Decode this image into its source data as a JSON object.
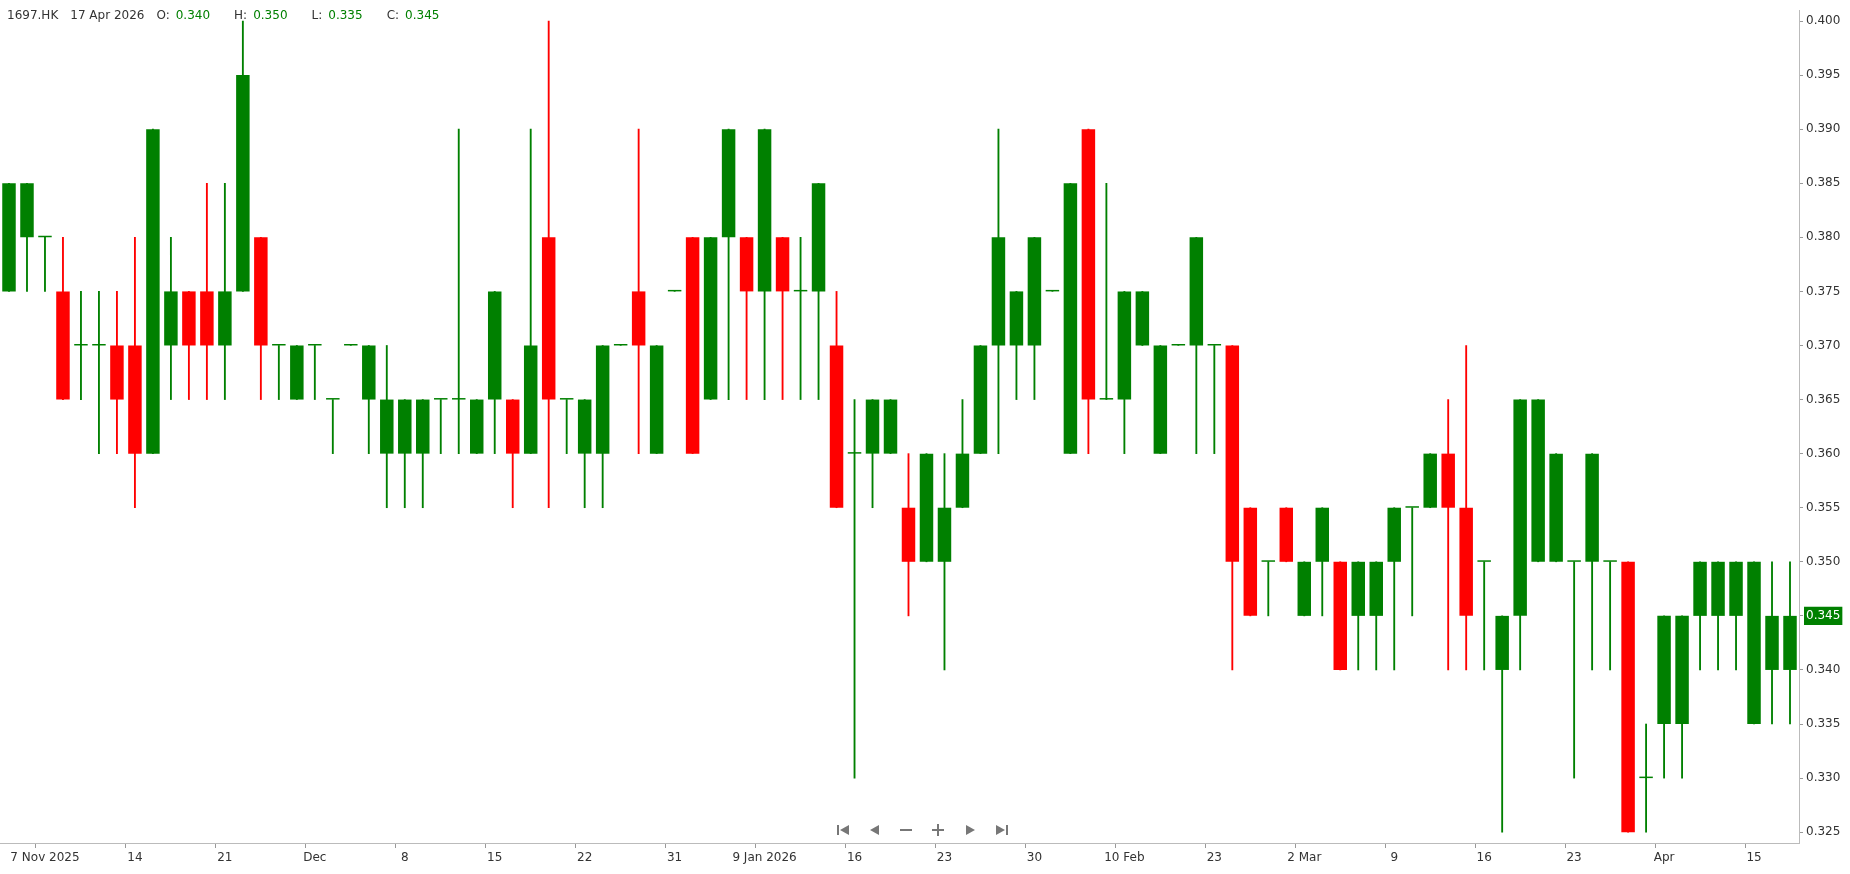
{
  "chart_data": {
    "type": "candlestick",
    "title": "1697.HK",
    "subtitle": "17 Apr 2026",
    "annotations": [
      "O: 0.340",
      "H: 0.350",
      "L: 0.335",
      "C: 0.345"
    ],
    "categories": [
      null,
      null,
      "7 Nov 2025",
      null,
      null,
      null,
      null,
      "14",
      null,
      null,
      null,
      null,
      "21",
      null,
      null,
      null,
      null,
      "Dec",
      null,
      null,
      null,
      null,
      "8",
      null,
      null,
      null,
      null,
      "15",
      null,
      null,
      null,
      null,
      "22",
      null,
      null,
      null,
      null,
      "31",
      null,
      null,
      null,
      null,
      "9 Jan 2026",
      null,
      null,
      null,
      null,
      "16",
      null,
      null,
      null,
      null,
      "23",
      null,
      null,
      null,
      null,
      "30",
      null,
      null,
      null,
      null,
      "10 Feb",
      null,
      null,
      null,
      null,
      "23",
      null,
      null,
      null,
      null,
      "2 Mar",
      null,
      null,
      null,
      null,
      "9",
      null,
      null,
      null,
      null,
      "16",
      null,
      null,
      null,
      null,
      "23",
      null,
      null,
      null,
      null,
      "Apr",
      null,
      null,
      null,
      null,
      "15",
      null,
      null
    ],
    "ohlc": [
      [
        0.375,
        0.385,
        0.375,
        0.385
      ],
      [
        0.38,
        0.385,
        0.375,
        0.385
      ],
      [
        0.38,
        0.38,
        0.375,
        0.38
      ],
      [
        0.375,
        0.38,
        0.365,
        0.365
      ],
      [
        0.37,
        0.375,
        0.365,
        0.37
      ],
      [
        0.37,
        0.375,
        0.36,
        0.37
      ],
      [
        0.37,
        0.375,
        0.36,
        0.365
      ],
      [
        0.37,
        0.38,
        0.355,
        0.36
      ],
      [
        0.36,
        0.39,
        0.36,
        0.39
      ],
      [
        0.37,
        0.38,
        0.365,
        0.375
      ],
      [
        0.375,
        0.375,
        0.365,
        0.37
      ],
      [
        0.375,
        0.385,
        0.365,
        0.37
      ],
      [
        0.37,
        0.385,
        0.365,
        0.375
      ],
      [
        0.375,
        0.4,
        0.375,
        0.395
      ],
      [
        0.38,
        0.38,
        0.365,
        0.37
      ],
      [
        0.37,
        0.37,
        0.365,
        0.37
      ],
      [
        0.365,
        0.37,
        0.365,
        0.37
      ],
      [
        0.37,
        0.37,
        0.365,
        0.37
      ],
      [
        0.365,
        0.365,
        0.36,
        0.365
      ],
      [
        0.37,
        0.37,
        0.37,
        0.37
      ],
      [
        0.365,
        0.37,
        0.36,
        0.37
      ],
      [
        0.36,
        0.37,
        0.355,
        0.365
      ],
      [
        0.36,
        0.365,
        0.355,
        0.365
      ],
      [
        0.36,
        0.365,
        0.355,
        0.365
      ],
      [
        0.365,
        0.365,
        0.36,
        0.365
      ],
      [
        0.365,
        0.39,
        0.36,
        0.365
      ],
      [
        0.36,
        0.365,
        0.36,
        0.365
      ],
      [
        0.365,
        0.375,
        0.36,
        0.375
      ],
      [
        0.365,
        0.365,
        0.355,
        0.36
      ],
      [
        0.36,
        0.39,
        0.36,
        0.37
      ],
      [
        0.38,
        0.4,
        0.355,
        0.365
      ],
      [
        0.365,
        0.365,
        0.36,
        0.365
      ],
      [
        0.36,
        0.365,
        0.355,
        0.365
      ],
      [
        0.36,
        0.37,
        0.355,
        0.37
      ],
      [
        0.37,
        0.37,
        0.37,
        0.37
      ],
      [
        0.375,
        0.39,
        0.36,
        0.37
      ],
      [
        0.36,
        0.37,
        0.36,
        0.37
      ],
      [
        0.375,
        0.375,
        0.375,
        0.375
      ],
      [
        0.38,
        0.38,
        0.36,
        0.36
      ],
      [
        0.365,
        0.38,
        0.365,
        0.38
      ],
      [
        0.38,
        0.39,
        0.365,
        0.39
      ],
      [
        0.38,
        0.38,
        0.365,
        0.375
      ],
      [
        0.375,
        0.39,
        0.365,
        0.39
      ],
      [
        0.38,
        0.38,
        0.365,
        0.375
      ],
      [
        0.375,
        0.38,
        0.365,
        0.375
      ],
      [
        0.375,
        0.385,
        0.365,
        0.385
      ],
      [
        0.37,
        0.375,
        0.355,
        0.355
      ],
      [
        0.36,
        0.365,
        0.33,
        0.36
      ],
      [
        0.36,
        0.365,
        0.355,
        0.365
      ],
      [
        0.36,
        0.365,
        0.36,
        0.365
      ],
      [
        0.355,
        0.36,
        0.345,
        0.35
      ],
      [
        0.35,
        0.36,
        0.35,
        0.36
      ],
      [
        0.35,
        0.36,
        0.34,
        0.355
      ],
      [
        0.355,
        0.365,
        0.355,
        0.36
      ],
      [
        0.36,
        0.37,
        0.36,
        0.37
      ],
      [
        0.37,
        0.39,
        0.36,
        0.38
      ],
      [
        0.37,
        0.375,
        0.365,
        0.375
      ],
      [
        0.37,
        0.38,
        0.365,
        0.38
      ],
      [
        0.375,
        0.375,
        0.375,
        0.375
      ],
      [
        0.36,
        0.385,
        0.36,
        0.385
      ],
      [
        0.39,
        0.39,
        0.36,
        0.365
      ],
      [
        0.365,
        0.385,
        0.365,
        0.365
      ],
      [
        0.365,
        0.375,
        0.36,
        0.375
      ],
      [
        0.37,
        0.375,
        0.37,
        0.375
      ],
      [
        0.36,
        0.37,
        0.36,
        0.37
      ],
      [
        0.37,
        0.37,
        0.37,
        0.37
      ],
      [
        0.37,
        0.38,
        0.36,
        0.38
      ],
      [
        0.37,
        0.37,
        0.36,
        0.37
      ],
      [
        0.37,
        0.37,
        0.34,
        0.35
      ],
      [
        0.355,
        0.355,
        0.345,
        0.345
      ],
      [
        0.35,
        0.35,
        0.345,
        0.35
      ],
      [
        0.355,
        0.355,
        0.35,
        0.35
      ],
      [
        0.345,
        0.35,
        0.345,
        0.35
      ],
      [
        0.35,
        0.355,
        0.345,
        0.355
      ],
      [
        0.35,
        0.35,
        0.34,
        0.34
      ],
      [
        0.345,
        0.35,
        0.34,
        0.35
      ],
      [
        0.345,
        0.35,
        0.34,
        0.35
      ],
      [
        0.35,
        0.355,
        0.34,
        0.355
      ],
      [
        0.355,
        0.355,
        0.345,
        0.355
      ],
      [
        0.355,
        0.36,
        0.355,
        0.36
      ],
      [
        0.36,
        0.365,
        0.34,
        0.355
      ],
      [
        0.355,
        0.37,
        0.34,
        0.345
      ],
      [
        0.35,
        0.35,
        0.34,
        0.35
      ],
      [
        0.34,
        0.345,
        0.325,
        0.345
      ],
      [
        0.345,
        0.365,
        0.34,
        0.365
      ],
      [
        0.35,
        0.365,
        0.35,
        0.365
      ],
      [
        0.35,
        0.36,
        0.35,
        0.36
      ],
      [
        0.35,
        0.35,
        0.33,
        0.35
      ],
      [
        0.35,
        0.36,
        0.34,
        0.36
      ],
      [
        0.35,
        0.35,
        0.34,
        0.35
      ],
      [
        0.35,
        0.35,
        0.325,
        0.325
      ],
      [
        0.33,
        0.335,
        0.325,
        0.33
      ],
      [
        0.335,
        0.345,
        0.33,
        0.345
      ],
      [
        0.335,
        0.345,
        0.33,
        0.345
      ],
      [
        0.345,
        0.35,
        0.34,
        0.35
      ],
      [
        0.345,
        0.35,
        0.34,
        0.35
      ],
      [
        0.345,
        0.35,
        0.34,
        0.35
      ],
      [
        0.335,
        0.35,
        0.335,
        0.35
      ],
      [
        0.34,
        0.35,
        0.335,
        0.345
      ],
      [
        0.34,
        0.35,
        0.335,
        0.345
      ]
    ],
    "colors": [
      "#008000",
      "#008000",
      "#008000",
      "#ff0000",
      "#008000",
      "#008000",
      "#ff0000",
      "#ff0000",
      "#008000",
      "#008000",
      "#ff0000",
      "#ff0000",
      "#008000",
      "#008000",
      "#ff0000",
      "#008000",
      "#008000",
      "#008000",
      "#008000",
      "#008000",
      "#008000",
      "#008000",
      "#008000",
      "#008000",
      "#008000",
      "#008000",
      "#008000",
      "#008000",
      "#ff0000",
      "#008000",
      "#ff0000",
      "#008000",
      "#008000",
      "#008000",
      "#008000",
      "#ff0000",
      "#008000",
      "#008000",
      "#ff0000",
      "#008000",
      "#008000",
      "#ff0000",
      "#008000",
      "#ff0000",
      "#008000",
      "#008000",
      "#ff0000",
      "#008000",
      "#008000",
      "#008000",
      "#ff0000",
      "#008000",
      "#008000",
      "#008000",
      "#008000",
      "#008000",
      "#008000",
      "#008000",
      "#008000",
      "#008000",
      "#ff0000",
      "#008000",
      "#008000",
      "#008000",
      "#008000",
      "#008000",
      "#008000",
      "#008000",
      "#ff0000",
      "#ff0000",
      "#008000",
      "#ff0000",
      "#008000",
      "#008000",
      "#ff0000",
      "#008000",
      "#008000",
      "#008000",
      "#008000",
      "#008000",
      "#ff0000",
      "#ff0000",
      "#008000",
      "#008000",
      "#008000",
      "#008000",
      "#008000",
      "#008000",
      "#008000",
      "#008000",
      "#ff0000",
      "#008000",
      "#008000",
      "#008000",
      "#008000",
      "#008000",
      "#008000",
      "#008000",
      "#008000",
      "#008000"
    ],
    "ylim": [
      0.324,
      0.401
    ],
    "yticks": [
      {
        "value": 0.325,
        "label": "0.325"
      },
      {
        "value": 0.33,
        "label": "0.330"
      },
      {
        "value": 0.335,
        "label": "0.335"
      },
      {
        "value": 0.34,
        "label": "0.340"
      },
      {
        "value": 0.345,
        "label": "0.345"
      },
      {
        "value": 0.35,
        "label": "0.350"
      },
      {
        "value": 0.355,
        "label": "0.355"
      },
      {
        "value": 0.36,
        "label": "0.360"
      },
      {
        "value": 0.365,
        "label": "0.365"
      },
      {
        "value": 0.37,
        "label": "0.370"
      },
      {
        "value": 0.375,
        "label": "0.375"
      },
      {
        "value": 0.38,
        "label": "0.380"
      },
      {
        "value": 0.385,
        "label": "0.385"
      },
      {
        "value": 0.39,
        "label": "0.390"
      },
      {
        "value": 0.395,
        "label": "0.395"
      },
      {
        "value": 0.4,
        "label": "0.400"
      }
    ],
    "grid": false,
    "legend": false
  }
}
